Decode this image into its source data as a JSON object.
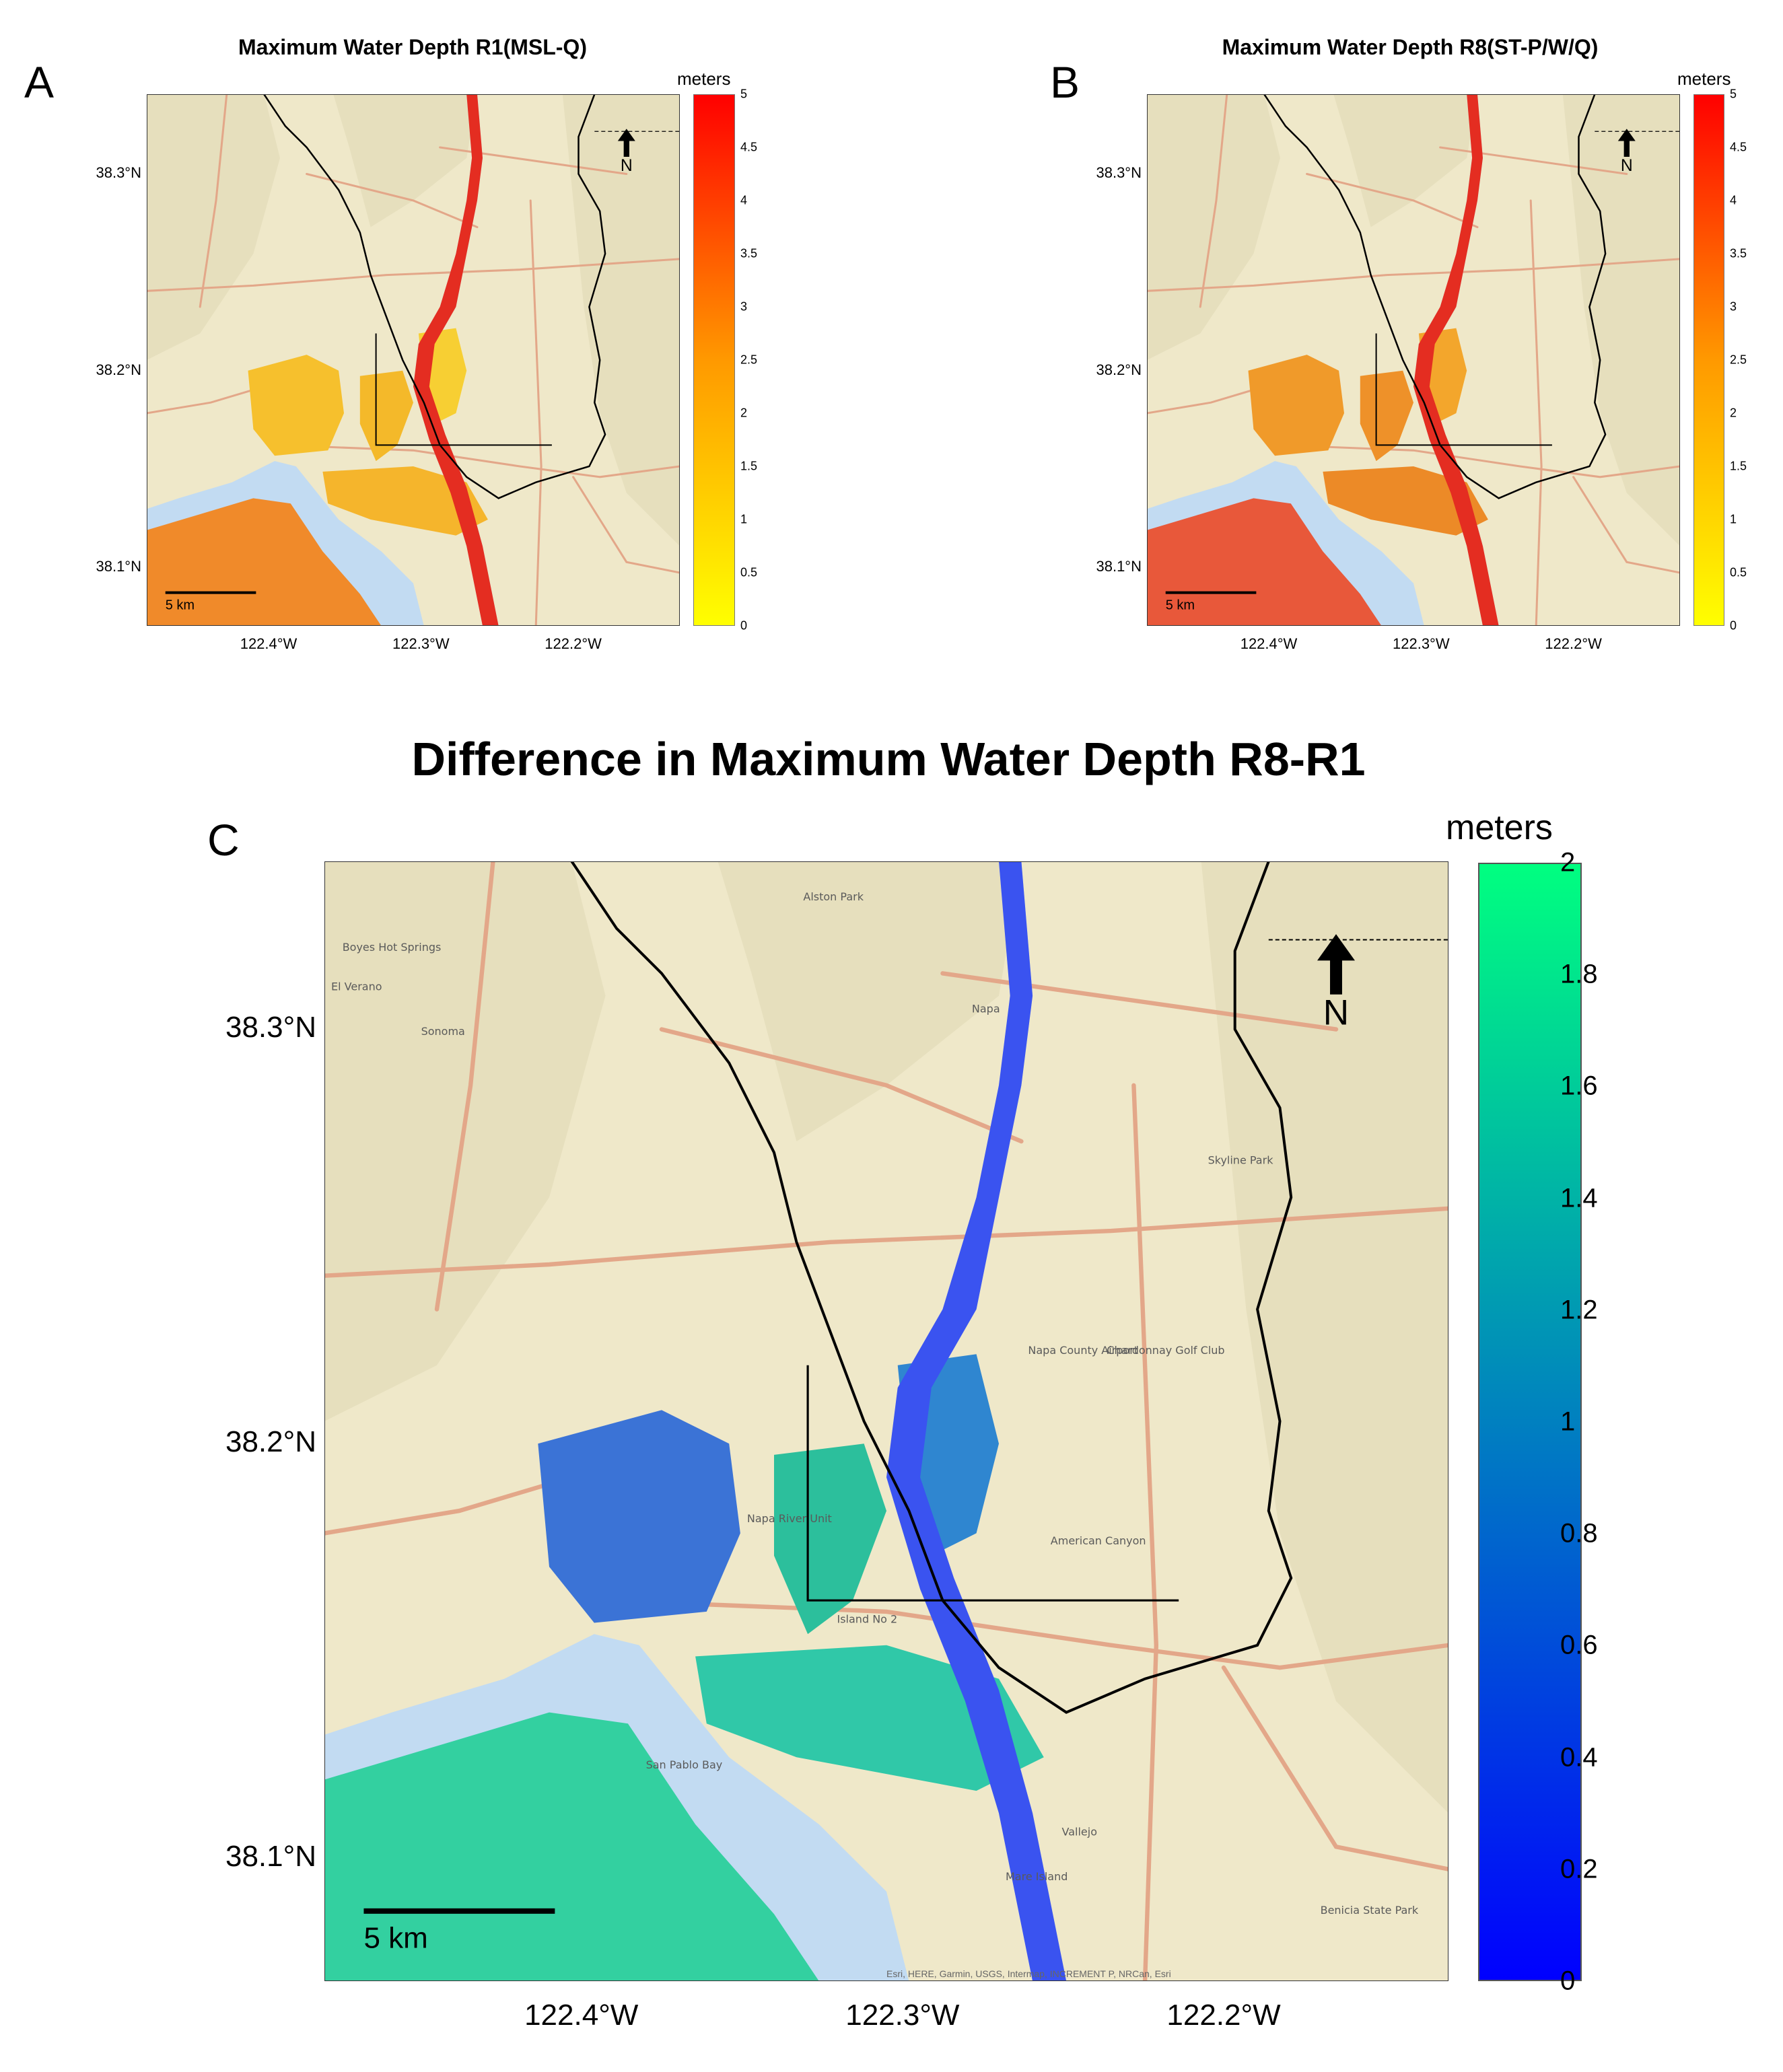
{
  "figure": {
    "panelA": {
      "letter": "A",
      "title": "Maximum Water Depth R1(MSL-Q)",
      "colorbar": {
        "units": "meters",
        "ticks": [
          "5",
          "4.5",
          "4",
          "3.5",
          "3",
          "2.5",
          "2",
          "1.5",
          "1",
          "0.5",
          "0"
        ],
        "range": [
          0,
          5
        ],
        "colors": [
          "#ffff00",
          "#ff9900",
          "#ff0000"
        ]
      },
      "lat_ticks": [
        "38.3",
        "38.2",
        "38.1"
      ],
      "lon_ticks": [
        "122.4",
        "122.3",
        "122.2"
      ],
      "scale_bar": "5 km",
      "north": "N"
    },
    "panelB": {
      "letter": "B",
      "title": "Maximum Water Depth R8(ST-P/W/Q)",
      "colorbar": {
        "units": "meters",
        "ticks": [
          "5",
          "4.5",
          "4",
          "3.5",
          "3",
          "2.5",
          "2",
          "1.5",
          "1",
          "0.5",
          "0"
        ],
        "range": [
          0,
          5
        ],
        "colors": [
          "#ffff00",
          "#ff9900",
          "#ff0000"
        ]
      },
      "lat_ticks": [
        "38.3",
        "38.2",
        "38.1"
      ],
      "lon_ticks": [
        "122.4",
        "122.3",
        "122.2"
      ],
      "scale_bar": "5 km",
      "north": "N"
    },
    "panelC": {
      "letter": "C",
      "title": "Difference in Maximum Water Depth R8-R1",
      "colorbar": {
        "units": "meters",
        "ticks": [
          "2",
          "1.8",
          "1.6",
          "1.4",
          "1.2",
          "1",
          "0.8",
          "0.6",
          "0.4",
          "0.2",
          "0"
        ],
        "range": [
          0,
          2
        ],
        "colors": [
          "#0000ff",
          "#0080c0",
          "#00ff80"
        ]
      },
      "lat_ticks": [
        "38.3",
        "38.2",
        "38.1"
      ],
      "lon_ticks": [
        "122.4",
        "122.3",
        "122.2"
      ],
      "scale_bar": "5 km",
      "north": "N",
      "place_labels": [
        "Boyes Hot Springs",
        "El Verano",
        "Sonoma",
        "Napa",
        "American Canyon",
        "Vallejo",
        "San Pablo Bay",
        "Napa River Unit",
        "Island No 2",
        "Mare Island",
        "Napa County Airport",
        "Chardonnay Golf Club",
        "Skyline Park",
        "Alston Park",
        "Benicia State Park"
      ],
      "attribution": "Esri, HERE, Garmin, USGS, Intermap, INCREMENT P, NRCan, Esri"
    }
  },
  "symbols": {
    "lat_suffix": "°N",
    "lon_suffix": "°W",
    "north_arrow": "arrow-up-icon"
  }
}
